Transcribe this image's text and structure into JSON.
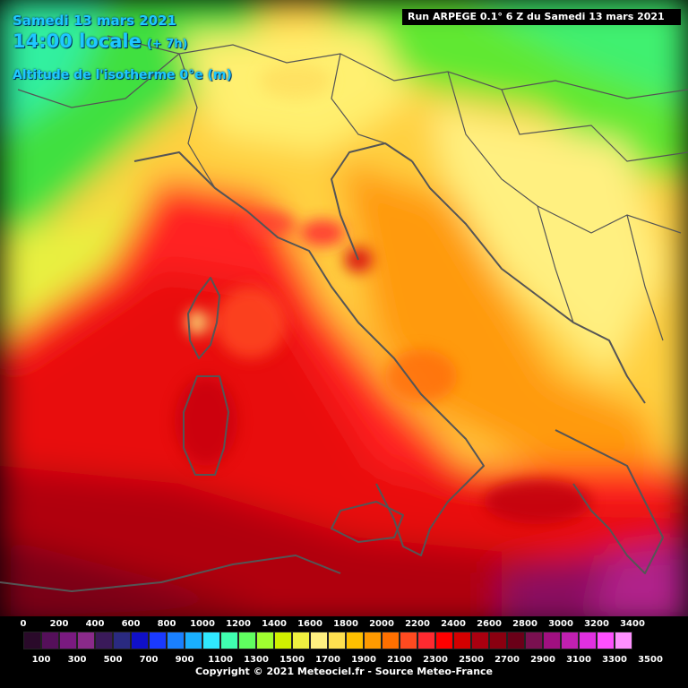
{
  "header": {
    "date": "Samedi 13 mars 2021",
    "time": "14:00 locale",
    "offset": "(+ 7h)",
    "variable": "Altitude de l'isotherme 0°e (m)"
  },
  "run_info": "Run ARPEGE 0.1° 6 Z du Samedi 13 mars 2021",
  "legend": {
    "top_labels": [
      "0",
      "200",
      "400",
      "600",
      "800",
      "1000",
      "1200",
      "1400",
      "1600",
      "1800",
      "2000",
      "2200",
      "2400",
      "2600",
      "2800",
      "3000",
      "3200",
      "3400"
    ],
    "bottom_labels": [
      "100",
      "300",
      "500",
      "700",
      "900",
      "1100",
      "1300",
      "1500",
      "1700",
      "1900",
      "2100",
      "2300",
      "2500",
      "2700",
      "2900",
      "3100",
      "3300",
      "3500"
    ],
    "colors": [
      "#2a0a2a",
      "#55105a",
      "#7a1a80",
      "#8a2a8a",
      "#3a1a5a",
      "#2a2a80",
      "#1010c8",
      "#1a3aff",
      "#1a80ff",
      "#1ab0ff",
      "#30e8ff",
      "#40ffb0",
      "#60ff60",
      "#a0ff30",
      "#d0f000",
      "#f0f040",
      "#fff080",
      "#ffe050",
      "#ffc000",
      "#ff9a00",
      "#ff7000",
      "#ff4a20",
      "#ff2a30",
      "#ff0000",
      "#d40000",
      "#aa0010",
      "#8a0010",
      "#6a0018",
      "#7a1050",
      "#a01080",
      "#c020b0",
      "#e030e0",
      "#ff50ff",
      "#ff90ff"
    ]
  },
  "copyright": "Copyright © 2021 Meteociel.fr - Source Meteo-France"
}
